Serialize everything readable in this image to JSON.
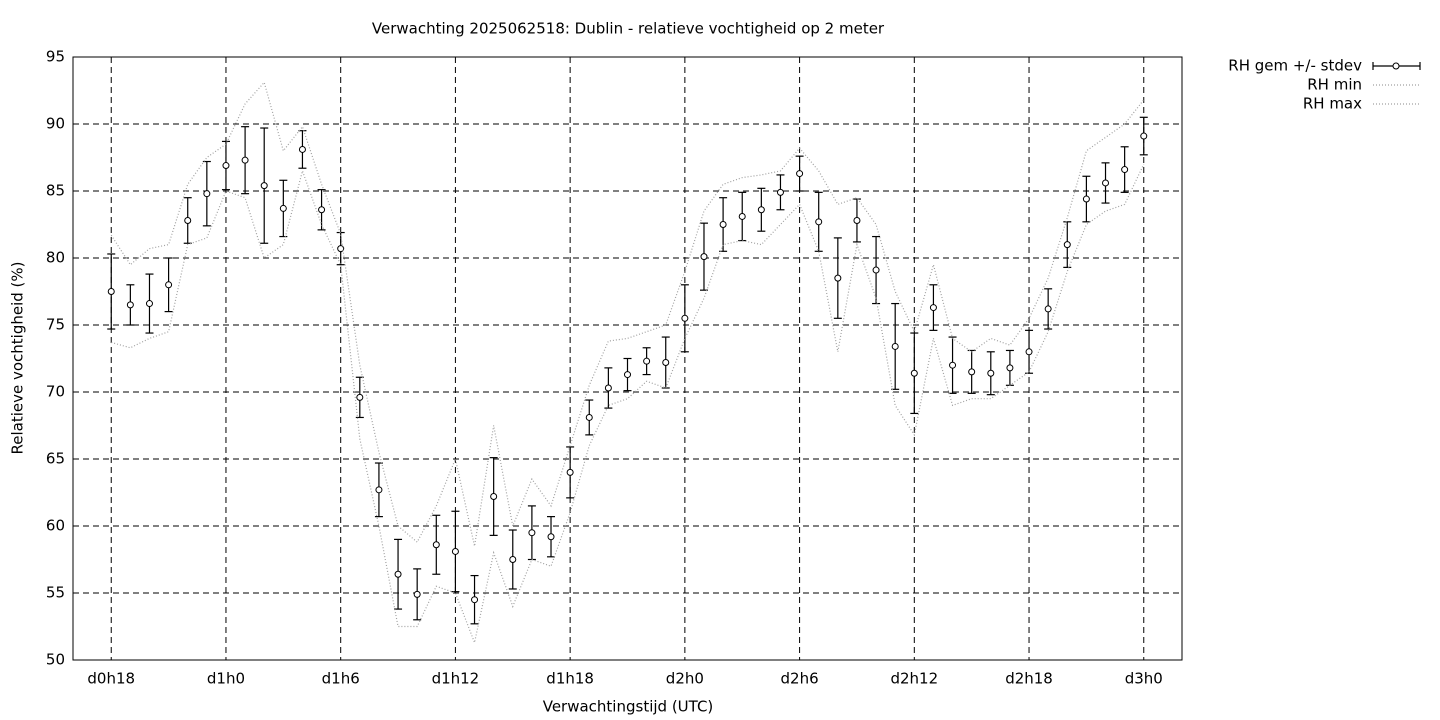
{
  "chart_data": {
    "type": "errorbar-line",
    "title": "Verwachting 2025062518: Dublin - relatieve vochtigheid op 2 meter",
    "xlabel": "Verwachtingstijd (UTC)",
    "ylabel": "Relatieve vochtigheid (%)",
    "x": [
      18,
      19,
      20,
      21,
      22,
      23,
      24,
      25,
      26,
      27,
      28,
      29,
      30,
      31,
      32,
      33,
      34,
      35,
      36,
      37,
      38,
      39,
      40,
      41,
      42,
      43,
      44,
      45,
      46,
      47,
      48,
      49,
      50,
      51,
      52,
      53,
      54,
      55,
      56,
      57,
      58,
      59,
      60,
      61,
      62,
      63,
      64,
      65,
      66,
      67,
      68,
      69,
      70,
      71,
      72
    ],
    "xlim": [
      16,
      74
    ],
    "xticks": [
      {
        "value": 18,
        "label": "d0h18"
      },
      {
        "value": 24,
        "label": "d1h0"
      },
      {
        "value": 30,
        "label": "d1h6"
      },
      {
        "value": 36,
        "label": "d1h12"
      },
      {
        "value": 42,
        "label": "d1h18"
      },
      {
        "value": 48,
        "label": "d2h0"
      },
      {
        "value": 54,
        "label": "d2h6"
      },
      {
        "value": 60,
        "label": "d2h12"
      },
      {
        "value": 66,
        "label": "d2h18"
      },
      {
        "value": 72,
        "label": "d3h0"
      }
    ],
    "ylim": [
      50,
      95
    ],
    "yticks": [
      50,
      55,
      60,
      65,
      70,
      75,
      80,
      85,
      90,
      95
    ],
    "grid": true,
    "legend": "outside-top-right",
    "series": [
      {
        "name": "RH gem +/- stdev",
        "color": "#000000",
        "style": "errorbar",
        "values": [
          77.5,
          76.5,
          76.6,
          78.0,
          82.8,
          84.8,
          86.9,
          87.3,
          85.4,
          83.7,
          88.1,
          83.6,
          80.7,
          69.6,
          62.7,
          56.4,
          54.9,
          58.6,
          58.1,
          54.5,
          62.2,
          57.5,
          59.5,
          59.2,
          64.0,
          68.1,
          70.3,
          71.3,
          72.3,
          72.2,
          75.5,
          80.1,
          82.5,
          83.1,
          83.6,
          84.9,
          86.3,
          82.7,
          78.5,
          82.8,
          79.1,
          73.4,
          71.4,
          76.3,
          72.0,
          71.5,
          71.4,
          71.8,
          73.0,
          76.2,
          81.0,
          84.4,
          85.6,
          86.6,
          89.1
        ],
        "errors": [
          2.8,
          1.5,
          2.2,
          2.0,
          1.7,
          2.4,
          1.8,
          2.5,
          4.3,
          2.1,
          1.4,
          1.5,
          1.2,
          1.5,
          2.0,
          2.6,
          1.9,
          2.2,
          3.0,
          1.8,
          2.9,
          2.2,
          2.0,
          1.5,
          1.9,
          1.3,
          1.5,
          1.2,
          1.0,
          1.9,
          2.5,
          2.5,
          2.0,
          1.8,
          1.6,
          1.3,
          1.3,
          2.2,
          3.0,
          1.6,
          2.5,
          3.2,
          3.0,
          1.7,
          2.1,
          1.6,
          1.6,
          1.3,
          1.6,
          1.5,
          1.7,
          1.7,
          1.5,
          1.7,
          1.4
        ]
      },
      {
        "name": "RH min",
        "color": "#a0a0a0",
        "style": "dotted",
        "values": [
          73.7,
          73.3,
          74.0,
          74.5,
          81.0,
          81.5,
          85.0,
          84.5,
          80.0,
          81.0,
          86.5,
          82.5,
          79.5,
          66.5,
          60.0,
          52.5,
          52.5,
          55.5,
          55.0,
          51.3,
          58.0,
          54.0,
          57.5,
          57.0,
          61.0,
          66.0,
          69.0,
          69.5,
          70.8,
          70.3,
          74.0,
          77.0,
          81.0,
          81.3,
          81.0,
          82.5,
          84.0,
          80.5,
          73.0,
          81.0,
          77.0,
          69.0,
          66.8,
          74.0,
          69.0,
          69.5,
          69.5,
          70.5,
          71.5,
          74.5,
          79.0,
          82.5,
          83.5,
          84.0,
          87.0
        ]
      },
      {
        "name": "RH max",
        "color": "#a0a0a0",
        "style": "dotted",
        "values": [
          81.7,
          79.5,
          80.7,
          81.0,
          85.5,
          87.5,
          88.5,
          91.5,
          93.1,
          88.0,
          89.8,
          85.5,
          81.8,
          72.0,
          65.5,
          60.0,
          58.8,
          61.5,
          65.0,
          58.5,
          67.5,
          60.0,
          63.5,
          61.5,
          66.0,
          70.5,
          73.8,
          74.0,
          74.5,
          75.0,
          79.0,
          83.5,
          85.5,
          86.0,
          86.2,
          86.5,
          88.2,
          86.5,
          84.0,
          84.5,
          82.5,
          77.5,
          74.5,
          79.5,
          74.0,
          73.0,
          74.0,
          73.5,
          75.5,
          78.5,
          83.0,
          88.0,
          89.0,
          90.0,
          91.8
        ]
      }
    ]
  }
}
